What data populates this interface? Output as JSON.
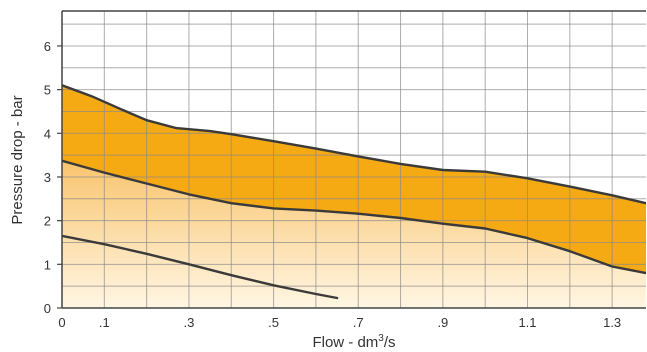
{
  "chart_data": {
    "type": "area",
    "title": "",
    "xlabel": "Flow - dm",
    "xlabel_sup": "3",
    "xlabel_unit_suffix": "/s",
    "ylabel": "Pressure drop - bar",
    "xlim": [
      0,
      1.38
    ],
    "ylim": [
      0,
      6.8
    ],
    "grid": true,
    "x_ticks": [
      {
        "value": 0,
        "label": "0"
      },
      {
        "value": 0.1,
        "label": ".1"
      },
      {
        "value": 0.3,
        "label": ".3"
      },
      {
        "value": 0.5,
        "label": ".5"
      },
      {
        "value": 0.7,
        "label": ".7"
      },
      {
        "value": 0.9,
        "label": ".9"
      },
      {
        "value": 1.1,
        "label": "1.1"
      },
      {
        "value": 1.3,
        "label": "1.3"
      }
    ],
    "y_ticks": [
      {
        "value": 0,
        "label": "0"
      },
      {
        "value": 1,
        "label": "1"
      },
      {
        "value": 2,
        "label": "2"
      },
      {
        "value": 3,
        "label": "3"
      },
      {
        "value": 4,
        "label": "4"
      },
      {
        "value": 5,
        "label": "5"
      },
      {
        "value": 6,
        "label": "6"
      }
    ],
    "series": [
      {
        "x": [
          0,
          0.07,
          0.14,
          0.2,
          0.27,
          0.35,
          0.4,
          0.5,
          0.6,
          0.7,
          0.8,
          0.9,
          1.0,
          1.1,
          1.2,
          1.3,
          1.38
        ],
        "y": [
          5.1,
          4.85,
          4.55,
          4.3,
          4.12,
          4.05,
          3.98,
          3.82,
          3.65,
          3.47,
          3.3,
          3.16,
          3.12,
          2.97,
          2.78,
          2.58,
          2.4
        ]
      },
      {
        "x": [
          0,
          0.1,
          0.2,
          0.3,
          0.4,
          0.5,
          0.6,
          0.7,
          0.8,
          0.9,
          1.0,
          1.1,
          1.2,
          1.3,
          1.38
        ],
        "y": [
          3.37,
          3.1,
          2.85,
          2.6,
          2.4,
          2.28,
          2.23,
          2.16,
          2.06,
          1.93,
          1.82,
          1.6,
          1.3,
          0.95,
          0.8
        ]
      },
      {
        "x": [
          0,
          0.1,
          0.2,
          0.3,
          0.4,
          0.5,
          0.6,
          0.65
        ],
        "y": [
          1.65,
          1.46,
          1.24,
          1.0,
          0.75,
          0.52,
          0.32,
          0.23
        ]
      }
    ],
    "colors": {
      "upper_band": "#f5a913",
      "lower_band": "#fbd694",
      "gradient_top": "#f9c46e",
      "gradient_bottom": "#fff6e3",
      "curve": "#3a3a3a",
      "grid": "#8a8a8a",
      "axis": "#444444"
    }
  }
}
